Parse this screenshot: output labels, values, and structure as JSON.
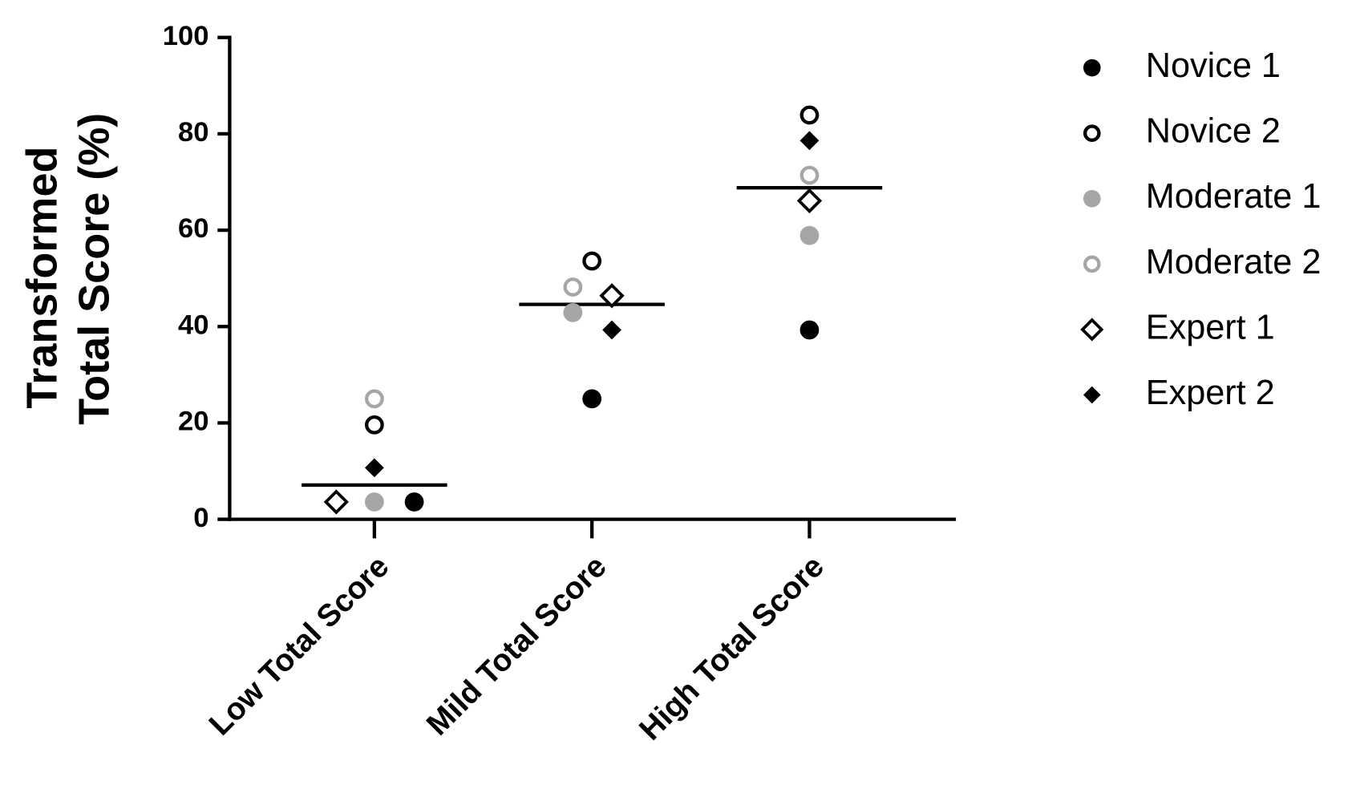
{
  "chart_data": {
    "type": "dot",
    "ylabel": [
      "Transformed",
      "Total Score (%)"
    ],
    "categories": [
      "Low Total Score",
      "Mild Total Score",
      "High Total Score"
    ],
    "ylim": [
      0,
      100
    ],
    "yticks": [
      0,
      20,
      40,
      60,
      80,
      100
    ],
    "medians": [
      7.1,
      44.6,
      68.8
    ],
    "series": [
      {
        "name": "Novice 1",
        "color": "#000000",
        "marker": "circle",
        "filled": true,
        "values": [
          3.6,
          25,
          39.3
        ]
      },
      {
        "name": "Novice 2",
        "color": "#000000",
        "marker": "circle",
        "filled": false,
        "values": [
          19.6,
          53.6,
          83.9
        ]
      },
      {
        "name": "Moderate 1",
        "color": "#a6a6a6",
        "marker": "circle",
        "filled": true,
        "values": [
          3.6,
          42.9,
          58.9
        ]
      },
      {
        "name": "Moderate 2",
        "color": "#a6a6a6",
        "marker": "circle",
        "filled": false,
        "values": [
          25,
          48.2,
          71.4
        ]
      },
      {
        "name": "Expert 1",
        "color": "#000000",
        "marker": "diamond",
        "filled": false,
        "values": [
          3.6,
          46.4,
          66.1
        ]
      },
      {
        "name": "Expert 2",
        "color": "#000000",
        "marker": "diamond",
        "filled": true,
        "values": [
          10.7,
          39.3,
          78.6
        ]
      }
    ]
  }
}
